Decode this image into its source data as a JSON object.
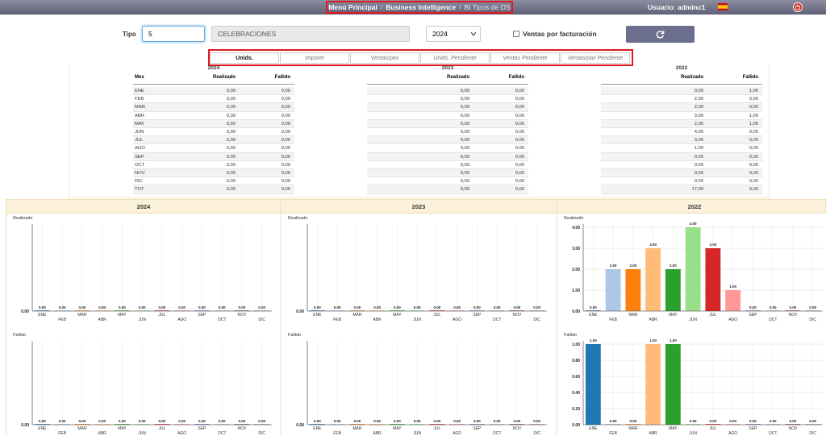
{
  "header": {
    "breadcrumb": [
      "Menú Principal",
      "Business Intelligence",
      "BI Tipos de OS"
    ],
    "user": "Usuario: adminc1"
  },
  "form": {
    "tipo_label": "Tipo",
    "tipo_code": "5",
    "tipo_name": "CELEBRACIONES",
    "year": "2024",
    "checkbox_label": "Ventas por facturación"
  },
  "tabs": [
    "Unids.",
    "Importe",
    "Ventas/pax",
    "Unids. Pendiente",
    "Ventas Pendiente",
    "Ventas/pax Pendiente"
  ],
  "tables": {
    "columns": [
      "Mes",
      "Realizado",
      "Fallido"
    ],
    "months": [
      "ENE",
      "FEB",
      "MAR",
      "ABR",
      "MAY",
      "JUN",
      "JUL",
      "AGO",
      "SEP",
      "OCT",
      "NOV",
      "DIC",
      "TOT"
    ],
    "years": [
      {
        "year": "2024",
        "realizado": [
          "0,00",
          "0,00",
          "0,00",
          "0,00",
          "0,00",
          "0,00",
          "0,00",
          "0,00",
          "0,00",
          "0,00",
          "0,00",
          "0,00",
          "0,00"
        ],
        "fallido": [
          "0,00",
          "0,00",
          "0,00",
          "0,00",
          "0,00",
          "0,00",
          "0,00",
          "0,00",
          "0,00",
          "0,00",
          "0,00",
          "0,00",
          "0,00"
        ]
      },
      {
        "year": "2023",
        "realizado": [
          "0,00",
          "0,00",
          "0,00",
          "0,00",
          "0,00",
          "0,00",
          "0,00",
          "0,00",
          "0,00",
          "0,00",
          "0,00",
          "0,00",
          "0,00"
        ],
        "fallido": [
          "0,00",
          "0,00",
          "0,00",
          "0,00",
          "0,00",
          "0,00",
          "0,00",
          "0,00",
          "0,00",
          "0,00",
          "0,00",
          "0,00",
          "0,00"
        ]
      },
      {
        "year": "2022",
        "realizado": [
          "0,00",
          "2,00",
          "2,00",
          "3,00",
          "2,00",
          "4,00",
          "3,00",
          "1,00",
          "0,00",
          "0,00",
          "0,00",
          "0,00",
          "17,00"
        ],
        "fallido": [
          "1,00",
          "0,00",
          "0,00",
          "1,00",
          "1,00",
          "0,00",
          "0,00",
          "0,00",
          "0,00",
          "0,00",
          "0,00",
          "0,00",
          "3,00"
        ]
      }
    ]
  },
  "chart_data": [
    {
      "type": "bar",
      "title": "Realizado",
      "categories": [
        "ENE",
        "FEB",
        "MAR",
        "ABR",
        "MAY",
        "JUN",
        "JUL",
        "AGO",
        "SEP",
        "OCT",
        "NOV",
        "DIC"
      ],
      "values": [
        0,
        0,
        0,
        0,
        0,
        0,
        0,
        0,
        0,
        0,
        0,
        0
      ],
      "value_labels": [
        "0.00",
        "0.00",
        "0.00",
        "0.00",
        "0.00",
        "0.00",
        "0.00",
        "0.00",
        "0.00",
        "0.00",
        "0.00",
        "0.00"
      ],
      "colors": [
        "#1f77b4",
        "#aec7e8",
        "#ff7f0e",
        "#ffbb78",
        "#2ca02c",
        "#98df8a",
        "#d62728",
        "#ff9896",
        "#9467bd",
        "#c5b0d5",
        "#8c564b",
        "#c49c94"
      ],
      "ylim": [
        0,
        1
      ],
      "yticks": [
        {
          "value": 0,
          "label": "0.00"
        }
      ]
    },
    {
      "type": "bar",
      "title": "Fallido",
      "categories": [
        "ENE",
        "FEB",
        "MAR",
        "ABR",
        "MAY",
        "JUN",
        "JUL",
        "AGO",
        "SEP",
        "OCT",
        "NOV",
        "DIC"
      ],
      "values": [
        0,
        0,
        0,
        0,
        0,
        0,
        0,
        0,
        0,
        0,
        0,
        0
      ],
      "value_labels": [
        "0.00",
        "0.00",
        "0.00",
        "0.00",
        "0.00",
        "0.00",
        "0.00",
        "0.00",
        "0.00",
        "0.00",
        "0.00",
        "0.00"
      ],
      "colors": [
        "#1f77b4",
        "#aec7e8",
        "#ff7f0e",
        "#ffbb78",
        "#2ca02c",
        "#98df8a",
        "#d62728",
        "#ff9896",
        "#9467bd",
        "#c5b0d5",
        "#8c564b",
        "#c49c94"
      ],
      "ylim": [
        0,
        1
      ],
      "yticks": [
        {
          "value": 0,
          "label": "0.00"
        }
      ]
    },
    {
      "type": "bar",
      "title": "Realizado",
      "categories": [
        "ENE",
        "FEB",
        "MAR",
        "ABR",
        "MAY",
        "JUN",
        "JUL",
        "AGO",
        "SEP",
        "OCT",
        "NOV",
        "DIC"
      ],
      "values": [
        0,
        0,
        0,
        0,
        0,
        0,
        0,
        0,
        0,
        0,
        0,
        0
      ],
      "value_labels": [
        "0.00",
        "0.00",
        "0.00",
        "0.00",
        "0.00",
        "0.00",
        "0.00",
        "0.00",
        "0.00",
        "0.00",
        "0.00",
        "0.00"
      ],
      "colors": [
        "#1f77b4",
        "#aec7e8",
        "#ff7f0e",
        "#ffbb78",
        "#2ca02c",
        "#98df8a",
        "#d62728",
        "#ff9896",
        "#9467bd",
        "#c5b0d5",
        "#8c564b",
        "#c49c94"
      ],
      "ylim": [
        0,
        1
      ],
      "yticks": [
        {
          "value": 0,
          "label": "0.00"
        }
      ]
    },
    {
      "type": "bar",
      "title": "Fallido",
      "categories": [
        "ENE",
        "FEB",
        "MAR",
        "ABR",
        "MAY",
        "JUN",
        "JUL",
        "AGO",
        "SEP",
        "OCT",
        "NOV",
        "DIC"
      ],
      "values": [
        0,
        0,
        0,
        0,
        0,
        0,
        0,
        0,
        0,
        0,
        0,
        0
      ],
      "value_labels": [
        "0.00",
        "0.00",
        "0.00",
        "0.00",
        "0.00",
        "0.00",
        "0.00",
        "0.00",
        "0.00",
        "0.00",
        "0.00",
        "0.00"
      ],
      "colors": [
        "#1f77b4",
        "#aec7e8",
        "#ff7f0e",
        "#ffbb78",
        "#2ca02c",
        "#98df8a",
        "#d62728",
        "#ff9896",
        "#9467bd",
        "#c5b0d5",
        "#8c564b",
        "#c49c94"
      ],
      "ylim": [
        0,
        1
      ],
      "yticks": [
        {
          "value": 0,
          "label": "0.00"
        }
      ]
    },
    {
      "type": "bar",
      "title": "Realizado",
      "categories": [
        "ENE",
        "FEB",
        "MAR",
        "ABR",
        "MAY",
        "JUN",
        "JUL",
        "AGO",
        "SEP",
        "OCT",
        "NOV",
        "DIC"
      ],
      "values": [
        0,
        2,
        2,
        3,
        2,
        4,
        3,
        1,
        0,
        0,
        0,
        0
      ],
      "value_labels": [
        "0.00",
        "2.00",
        "2.00",
        "3.00",
        "2.00",
        "4.00",
        "3.00",
        "1.00",
        "0.00",
        "0.00",
        "0.00",
        "0.00"
      ],
      "colors": [
        "#1f77b4",
        "#aec7e8",
        "#ff7f0e",
        "#ffbb78",
        "#2ca02c",
        "#98df8a",
        "#d62728",
        "#ff9896",
        "#9467bd",
        "#c5b0d5",
        "#8c564b",
        "#c49c94"
      ],
      "ylim": [
        0,
        4
      ],
      "yticks": [
        {
          "value": 0,
          "label": "0.00"
        },
        {
          "value": 1,
          "label": "1.00"
        },
        {
          "value": 2,
          "label": "2.00"
        },
        {
          "value": 3,
          "label": "3.00"
        },
        {
          "value": 4,
          "label": "4.00"
        }
      ]
    },
    {
      "type": "bar",
      "title": "Fallido",
      "categories": [
        "ENE",
        "FEB",
        "MAR",
        "ABR",
        "MAY",
        "JUN",
        "JUL",
        "AGO",
        "SEP",
        "OCT",
        "NOV",
        "DIC"
      ],
      "values": [
        1,
        0,
        0,
        1,
        1,
        0,
        0,
        0,
        0,
        0,
        0,
        0
      ],
      "value_labels": [
        "1.00",
        "0.00",
        "0.00",
        "1.00",
        "1.00",
        "0.00",
        "0.00",
        "0.00",
        "0.00",
        "0.00",
        "0.00",
        "0.00"
      ],
      "colors": [
        "#1f77b4",
        "#aec7e8",
        "#ff7f0e",
        "#ffbb78",
        "#2ca02c",
        "#98df8a",
        "#d62728",
        "#ff9896",
        "#9467bd",
        "#c5b0d5",
        "#8c564b",
        "#c49c94"
      ],
      "ylim": [
        0,
        1
      ],
      "yticks": [
        {
          "value": 0,
          "label": "0.00"
        },
        {
          "value": 0.2,
          "label": "0.20"
        },
        {
          "value": 0.4,
          "label": "0.40"
        },
        {
          "value": 0.6,
          "label": "0.60"
        },
        {
          "value": 0.8,
          "label": "0.80"
        },
        {
          "value": 1,
          "label": "1.00"
        }
      ]
    }
  ]
}
